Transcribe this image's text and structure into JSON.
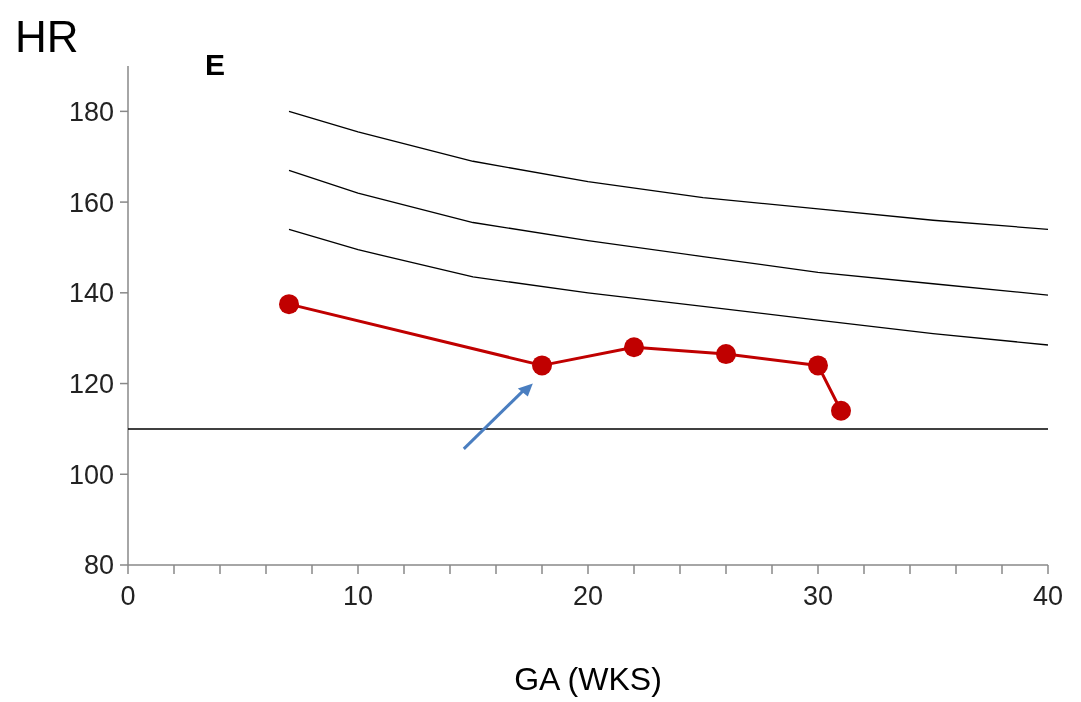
{
  "chart_data": {
    "type": "line",
    "title": "E",
    "xlabel": "GA (WKS)",
    "ylabel": "HR",
    "xlim": [
      0,
      40
    ],
    "ylim": [
      80,
      190
    ],
    "xticks": [
      0,
      {
        "value": 2,
        "label": null
      },
      {
        "value": 4,
        "label": null
      },
      {
        "value": 6,
        "label": null
      },
      {
        "value": 8,
        "label": null
      },
      10,
      {
        "value": 12,
        "label": null
      },
      {
        "value": 14,
        "label": null
      },
      {
        "value": 16,
        "label": null
      },
      {
        "value": 18,
        "label": null
      },
      20,
      {
        "value": 22,
        "label": null
      },
      {
        "value": 24,
        "label": null
      },
      {
        "value": 26,
        "label": null
      },
      {
        "value": 28,
        "label": null
      },
      30,
      {
        "value": 32,
        "label": null
      },
      {
        "value": 34,
        "label": null
      },
      {
        "value": 36,
        "label": null
      },
      {
        "value": 38,
        "label": null
      },
      40
    ],
    "yticks": [
      80,
      100,
      120,
      140,
      160,
      180
    ],
    "grid": false,
    "series": [
      {
        "color": "#000000",
        "marker": "none",
        "x": [
          7,
          10,
          15,
          20,
          25,
          30,
          35,
          40
        ],
        "values": [
          180,
          175.5,
          169,
          164.5,
          161,
          158.5,
          156,
          154
        ]
      },
      {
        "color": "#000000",
        "marker": "none",
        "x": [
          7,
          10,
          15,
          20,
          25,
          30,
          35,
          40
        ],
        "values": [
          167,
          162,
          155.5,
          151.5,
          148,
          144.5,
          142,
          139.5
        ]
      },
      {
        "color": "#000000",
        "marker": "none",
        "x": [
          7,
          10,
          15,
          20,
          25,
          30,
          35,
          40
        ],
        "values": [
          154,
          149.5,
          143.5,
          140,
          137,
          134,
          131,
          128.5
        ]
      },
      {
        "color": "#c00000",
        "marker": "circle",
        "x": [
          7,
          18,
          22,
          26,
          30,
          31
        ],
        "values": [
          137.5,
          124,
          128,
          126.5,
          124,
          114
        ]
      }
    ],
    "ref_lines": [
      {
        "axis": "y",
        "value": 110,
        "color": "#000000"
      }
    ]
  }
}
